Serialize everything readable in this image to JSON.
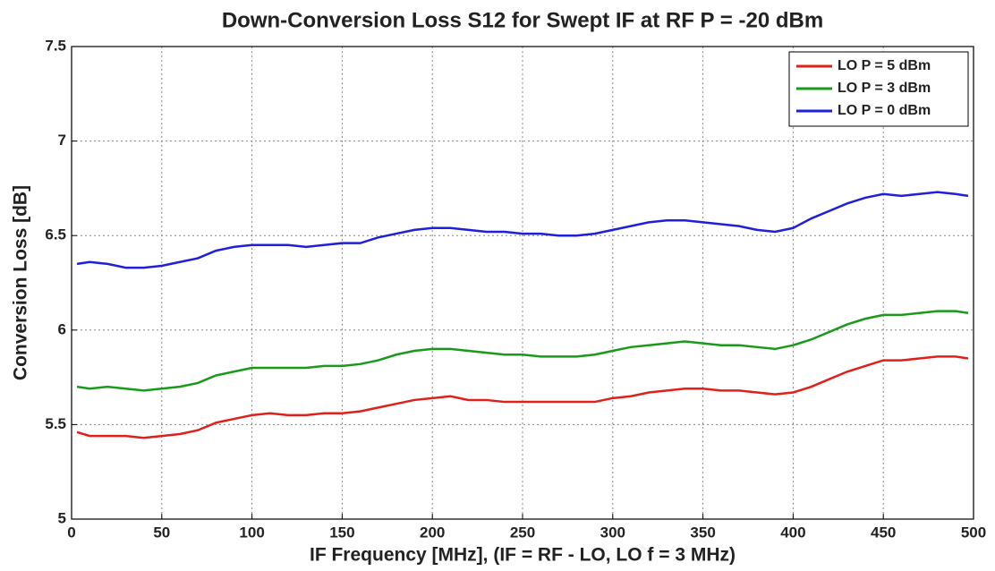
{
  "chart_data": {
    "type": "line",
    "title": "Down-Conversion Loss S12 for Swept IF at RF P = -20 dBm",
    "xlabel": "IF Frequency [MHz], (IF = RF - LO, LO f = 3 MHz)",
    "ylabel": "Conversion Loss [dB]",
    "x": [
      3,
      10,
      20,
      30,
      40,
      50,
      60,
      70,
      80,
      90,
      100,
      110,
      120,
      130,
      140,
      150,
      160,
      170,
      180,
      190,
      200,
      210,
      220,
      230,
      240,
      250,
      260,
      270,
      280,
      290,
      300,
      310,
      320,
      330,
      340,
      350,
      360,
      370,
      380,
      390,
      400,
      410,
      420,
      430,
      440,
      450,
      460,
      470,
      480,
      490,
      497
    ],
    "series": [
      {
        "name": "LO P = 5 dBm",
        "color": "#e0201b",
        "values": [
          5.46,
          5.44,
          5.44,
          5.44,
          5.43,
          5.44,
          5.45,
          5.47,
          5.51,
          5.53,
          5.55,
          5.56,
          5.55,
          5.55,
          5.56,
          5.56,
          5.57,
          5.59,
          5.61,
          5.63,
          5.64,
          5.65,
          5.63,
          5.63,
          5.62,
          5.62,
          5.62,
          5.62,
          5.62,
          5.62,
          5.64,
          5.65,
          5.67,
          5.68,
          5.69,
          5.69,
          5.68,
          5.68,
          5.67,
          5.66,
          5.67,
          5.7,
          5.74,
          5.78,
          5.81,
          5.84,
          5.84,
          5.85,
          5.86,
          5.86,
          5.85
        ]
      },
      {
        "name": "LO P = 3 dBm",
        "color": "#1a9a1a",
        "values": [
          5.7,
          5.69,
          5.7,
          5.69,
          5.68,
          5.69,
          5.7,
          5.72,
          5.76,
          5.78,
          5.8,
          5.8,
          5.8,
          5.8,
          5.81,
          5.81,
          5.82,
          5.84,
          5.87,
          5.89,
          5.9,
          5.9,
          5.89,
          5.88,
          5.87,
          5.87,
          5.86,
          5.86,
          5.86,
          5.87,
          5.89,
          5.91,
          5.92,
          5.93,
          5.94,
          5.93,
          5.92,
          5.92,
          5.91,
          5.9,
          5.92,
          5.95,
          5.99,
          6.03,
          6.06,
          6.08,
          6.08,
          6.09,
          6.1,
          6.1,
          6.09
        ]
      },
      {
        "name": "LO P = 0 dBm",
        "color": "#1f1fdd",
        "values": [
          6.35,
          6.36,
          6.35,
          6.33,
          6.33,
          6.34,
          6.36,
          6.38,
          6.42,
          6.44,
          6.45,
          6.45,
          6.45,
          6.44,
          6.45,
          6.46,
          6.46,
          6.49,
          6.51,
          6.53,
          6.54,
          6.54,
          6.53,
          6.52,
          6.52,
          6.51,
          6.51,
          6.5,
          6.5,
          6.51,
          6.53,
          6.55,
          6.57,
          6.58,
          6.58,
          6.57,
          6.56,
          6.55,
          6.53,
          6.52,
          6.54,
          6.59,
          6.63,
          6.67,
          6.7,
          6.72,
          6.71,
          6.72,
          6.73,
          6.72,
          6.71
        ]
      }
    ],
    "xlim": [
      0,
      500
    ],
    "xticks": [
      0,
      50,
      100,
      150,
      200,
      250,
      300,
      350,
      400,
      450,
      500
    ],
    "ylim": [
      5,
      7.5
    ],
    "yticks": [
      5,
      5.5,
      6,
      6.5,
      7,
      7.5
    ],
    "grid": true,
    "legend": "northeast"
  }
}
